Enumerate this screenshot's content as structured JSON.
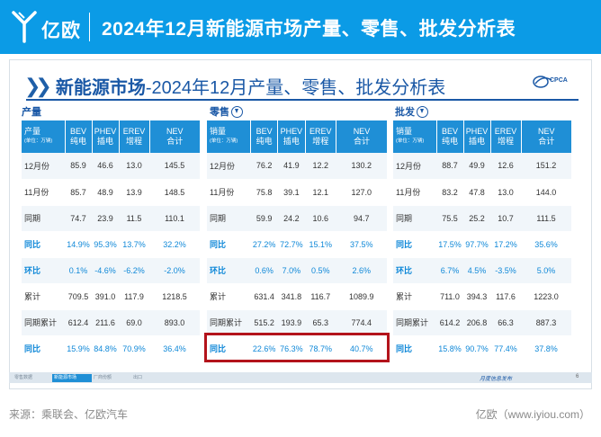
{
  "header": {
    "brand": "亿欧",
    "title": "2024年12月新能源市场产量、零售、批发分析表"
  },
  "slide": {
    "title_bold": "新能源市场",
    "title_rest": "-2024年12月产量、零售、批发分析表",
    "cpca_text": "CPCA",
    "sections": {
      "production": "产量",
      "retail": "零售",
      "wholesale": "批发"
    },
    "tables": [
      {
        "id": "production",
        "row_header": {
          "label": "产量",
          "sub": "(单位：万辆)"
        },
        "columns": [
          {
            "top": "BEV",
            "bottom": "纯电"
          },
          {
            "top": "PHEV",
            "bottom": "插电"
          },
          {
            "top": "EREV",
            "bottom": "增程"
          },
          {
            "top": "NEV",
            "bottom": "合计"
          }
        ],
        "rows": [
          {
            "label": "12月份",
            "values": [
              "85.9",
              "46.6",
              "13.0",
              "145.5"
            ],
            "highlight": false
          },
          {
            "label": "11月份",
            "values": [
              "85.7",
              "48.9",
              "13.9",
              "148.5"
            ],
            "highlight": false
          },
          {
            "label": "同期",
            "values": [
              "74.7",
              "23.9",
              "11.5",
              "110.1"
            ],
            "highlight": false
          },
          {
            "label": "同比",
            "values": [
              "14.9%",
              "95.3%",
              "13.7%",
              "32.2%"
            ],
            "highlight": true
          },
          {
            "label": "环比",
            "values": [
              "0.1%",
              "-4.6%",
              "-6.2%",
              "-2.0%"
            ],
            "highlight": true
          },
          {
            "label": "累计",
            "values": [
              "709.5",
              "391.0",
              "117.9",
              "1218.5"
            ],
            "highlight": false
          },
          {
            "label": "同期累计",
            "values": [
              "612.4",
              "211.6",
              "69.0",
              "893.0"
            ],
            "highlight": false
          },
          {
            "label": "同比",
            "values": [
              "15.9%",
              "84.8%",
              "70.9%",
              "36.4%"
            ],
            "highlight": true
          }
        ]
      },
      {
        "id": "retail",
        "row_header": {
          "label": "销量",
          "sub": "(单位：万辆)"
        },
        "columns": [
          {
            "top": "BEV",
            "bottom": "纯电"
          },
          {
            "top": "PHEV",
            "bottom": "插电"
          },
          {
            "top": "EREV",
            "bottom": "增程"
          },
          {
            "top": "NEV",
            "bottom": "合计"
          }
        ],
        "rows": [
          {
            "label": "12月份",
            "values": [
              "76.2",
              "41.9",
              "12.2",
              "130.2"
            ],
            "highlight": false
          },
          {
            "label": "11月份",
            "values": [
              "75.8",
              "39.1",
              "12.1",
              "127.0"
            ],
            "highlight": false
          },
          {
            "label": "同期",
            "values": [
              "59.9",
              "24.2",
              "10.6",
              "94.7"
            ],
            "highlight": false
          },
          {
            "label": "同比",
            "values": [
              "27.2%",
              "72.7%",
              "15.1%",
              "37.5%"
            ],
            "highlight": true
          },
          {
            "label": "环比",
            "values": [
              "0.6%",
              "7.0%",
              "0.5%",
              "2.6%"
            ],
            "highlight": true
          },
          {
            "label": "累计",
            "values": [
              "631.4",
              "341.8",
              "116.7",
              "1089.9"
            ],
            "highlight": false
          },
          {
            "label": "同期累计",
            "values": [
              "515.2",
              "193.9",
              "65.3",
              "774.4"
            ],
            "highlight": false
          },
          {
            "label": "同比",
            "values": [
              "22.6%",
              "76.3%",
              "78.7%",
              "40.7%"
            ],
            "highlight": true
          }
        ]
      },
      {
        "id": "wholesale",
        "row_header": {
          "label": "销量",
          "sub": "(单位：万辆)"
        },
        "columns": [
          {
            "top": "BEV",
            "bottom": "纯电"
          },
          {
            "top": "PHEV",
            "bottom": "插电"
          },
          {
            "top": "EREV",
            "bottom": "增程"
          },
          {
            "top": "NEV",
            "bottom": "合计"
          }
        ],
        "rows": [
          {
            "label": "12月份",
            "values": [
              "88.7",
              "49.9",
              "12.6",
              "151.2"
            ],
            "highlight": false
          },
          {
            "label": "11月份",
            "values": [
              "83.2",
              "47.8",
              "13.0",
              "144.0"
            ],
            "highlight": false
          },
          {
            "label": "同期",
            "values": [
              "75.5",
              "25.2",
              "10.7",
              "111.5"
            ],
            "highlight": false
          },
          {
            "label": "同比",
            "values": [
              "17.5%",
              "97.7%",
              "17.2%",
              "35.6%"
            ],
            "highlight": true
          },
          {
            "label": "环比",
            "values": [
              "6.7%",
              "4.5%",
              "-3.5%",
              "5.0%"
            ],
            "highlight": true
          },
          {
            "label": "累计",
            "values": [
              "711.0",
              "394.3",
              "117.6",
              "1223.0"
            ],
            "highlight": false
          },
          {
            "label": "同期累计",
            "values": [
              "614.2",
              "206.8",
              "66.3",
              "887.3"
            ],
            "highlight": false
          },
          {
            "label": "同比",
            "values": [
              "15.8%",
              "90.7%",
              "77.4%",
              "37.8%"
            ],
            "highlight": true
          }
        ]
      }
    ],
    "footer": {
      "tabs": [
        "零售数据",
        "新能源市场",
        "厂商份额",
        "出口"
      ],
      "active_tab": 1,
      "tagline": "月度信息发布",
      "page": "6"
    }
  },
  "source": "来源：乘联会、亿欧汽车",
  "site": "亿欧（www.iyiou.com）",
  "colors": {
    "brand_blue": "#0b9be6",
    "title_blue": "#1a58a6",
    "header_blue": "#1f8fd6",
    "highlight_text": "#0f88d8",
    "highlight_box": "#b3131b"
  }
}
